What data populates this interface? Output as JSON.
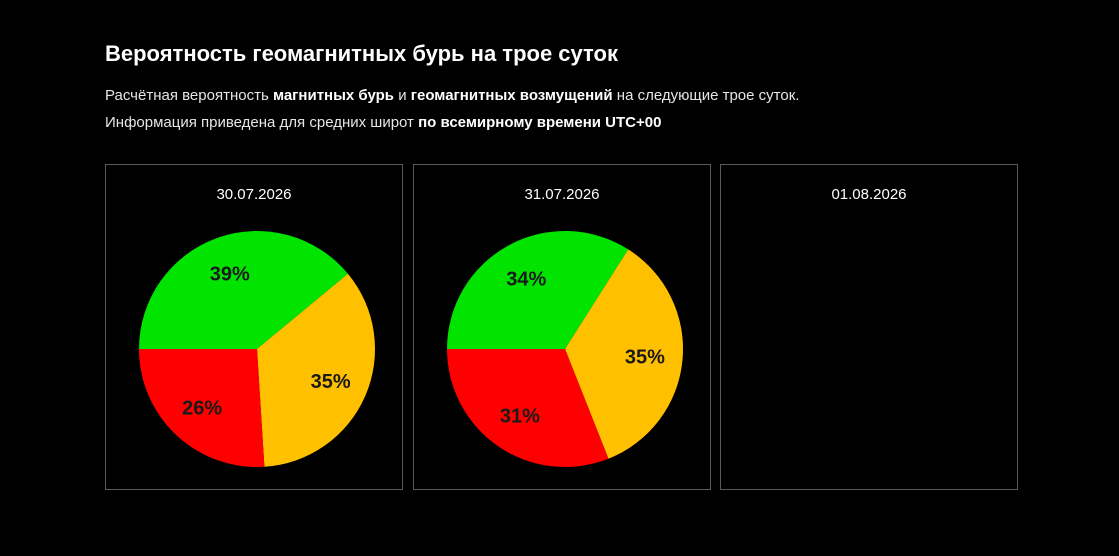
{
  "header": {
    "title": "Вероятность геомагнитных бурь на трое суток",
    "line1": {
      "t1": "Расчётная вероятность ",
      "b1": "магнитных бурь",
      "t2": " и ",
      "b2": "геомагнитных возмущений",
      "t3": " на следующие трое суток."
    },
    "line2": {
      "t1": "Информация приведена для средних широт ",
      "b1": "по всемирному времени UTC+00"
    }
  },
  "colors": {
    "green": "#00e400",
    "yellow": "#ffc000",
    "red": "#ff0000"
  },
  "chart_data": [
    {
      "type": "pie",
      "title": "30.07.2026",
      "slices": [
        {
          "value": 39,
          "label": "39%",
          "color": "#00e400"
        },
        {
          "value": 35,
          "label": "35%",
          "color": "#ffc000"
        },
        {
          "value": 26,
          "label": "26%",
          "color": "#ff0000"
        }
      ]
    },
    {
      "type": "pie",
      "title": "31.07.2026",
      "slices": [
        {
          "value": 34,
          "label": "34%",
          "color": "#00e400"
        },
        {
          "value": 35,
          "label": "35%",
          "color": "#ffc000"
        },
        {
          "value": 31,
          "label": "31%",
          "color": "#ff0000"
        }
      ]
    },
    {
      "type": "pie",
      "title": "01.08.2026",
      "slices": []
    }
  ]
}
